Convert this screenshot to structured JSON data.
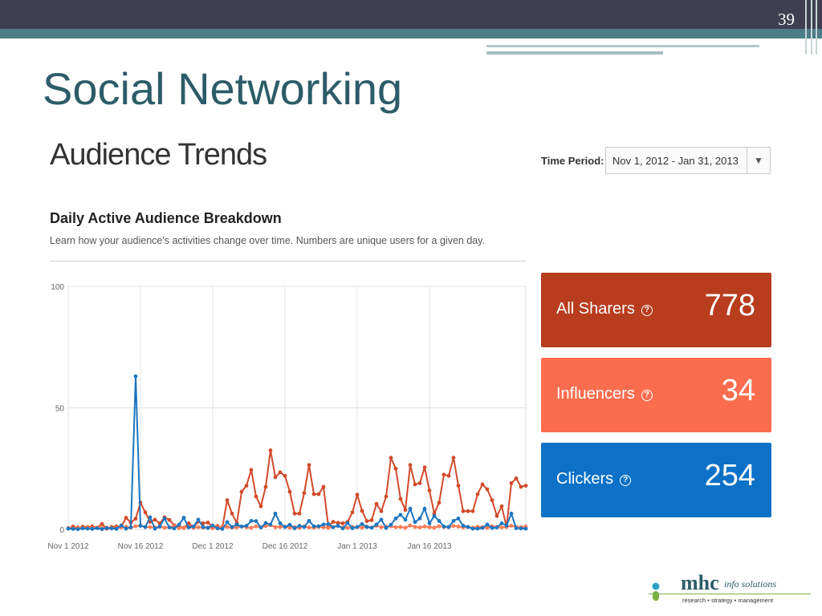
{
  "slide": {
    "page_number": "39",
    "title": "Social Networking"
  },
  "panel": {
    "title": "Audience Trends",
    "time_period_label": "Time Period:",
    "time_period_value": "Nov 1, 2012 - Jan 31, 2013",
    "section_title": "Daily Active Audience Breakdown",
    "section_description": "Learn how your audience's activities change over time. Numbers are unique users for a given day."
  },
  "stats": [
    {
      "label": "All Sharers",
      "value": "778",
      "color": "#b83c1e"
    },
    {
      "label": "Influencers",
      "value": "34",
      "color": "#fc6d4f"
    },
    {
      "label": "Clickers",
      "value": "254",
      "color": "#0d71c7"
    }
  ],
  "icons": {
    "help": "question-circle-icon",
    "dropdown": "triangle-down-icon"
  },
  "colors": {
    "topbar": "#3f3f51",
    "teal": "#4d7d86",
    "title": "#2c5c68",
    "sharers": "#d24a2a",
    "influencers": "#ff7a55",
    "clickers": "#1c76c0"
  },
  "chart_data": {
    "type": "line",
    "title": "",
    "xlabel": "",
    "ylabel": "",
    "ylim": [
      0,
      100
    ],
    "yticks": [
      0,
      50,
      100
    ],
    "xticks": [
      "Nov 1 2012",
      "Nov 16 2012",
      "Dec 1 2012",
      "Dec 16 2012",
      "Jan 1 2013",
      "Jan 16 2013"
    ],
    "x_start": "Nov 1 2012",
    "x_end": "Jan 31 2013",
    "grid": true,
    "series": [
      {
        "name": "All Sharers",
        "color": "#d24a2a",
        "values": [
          0.3,
          1.2,
          0.5,
          1.1,
          1.0,
          1.2,
          0.7,
          2.2,
          0.3,
          1.0,
          1.2,
          1.0,
          4.8,
          2.8,
          4.4,
          11,
          7,
          3.1,
          4.0,
          2.4,
          5.0,
          3.9,
          1.7,
          1.1,
          0.6,
          2.5,
          0.8,
          3.2,
          2.5,
          2.8,
          1.0,
          1.4,
          0.7,
          12,
          6.5,
          2.6,
          15.5,
          18.0,
          24.5,
          13.5,
          9.5,
          17.5,
          32.5,
          21.5,
          23.5,
          22.0,
          15.5,
          6.5,
          6.5,
          15.0,
          26.5,
          14.5,
          14.5,
          17.5,
          1.4,
          3.1,
          2.7,
          2.5,
          3.1,
          7.0,
          14.3,
          7.6,
          3.4,
          3.8,
          10.5,
          7.5,
          13.5,
          29.5,
          25.0,
          12.5,
          8.0,
          26.5,
          18.5,
          19.0,
          25.5,
          16.0,
          6.5,
          11.0,
          22.5,
          22.0,
          29.5,
          18.0,
          7.5,
          7.5,
          7.5,
          14.5,
          18.5,
          16.5,
          12.0,
          5.5,
          9.5,
          1.0,
          19.0,
          21.0,
          17.5,
          18.0
        ]
      },
      {
        "name": "Influencers",
        "color": "#ff7a55",
        "values": [
          0.6,
          0.4,
          0.9,
          0.5,
          0.8,
          0.5,
          0.8,
          0.5,
          0.7,
          0.6,
          0.5,
          0.8,
          1.1,
          0.7,
          1.3,
          1.6,
          0.9,
          1.0,
          0.8,
          1.1,
          0.7,
          0.9,
          1.4,
          0.5,
          0.8,
          1.0,
          0.6,
          0.9,
          0.7,
          0.8,
          0.5,
          0.9,
          1.1,
          1.0,
          0.7,
          0.8,
          1.2,
          0.9,
          0.6,
          1.3,
          0.8,
          1.4,
          1.7,
          0.9,
          1.0,
          1.1,
          0.7,
          0.9,
          0.6,
          1.2,
          0.8,
          0.7,
          1.0,
          0.9,
          0.6,
          1.0,
          1.4,
          0.8,
          0.6,
          1.0,
          0.9,
          0.7,
          1.2,
          0.8,
          1.5,
          0.9,
          1.1,
          1.3,
          0.9,
          1.0,
          0.7,
          1.6,
          1.0,
          0.8,
          1.2,
          0.9,
          0.7,
          1.3,
          1.0,
          0.9,
          1.4,
          1.2,
          0.8,
          1.0,
          0.7,
          1.1,
          0.9,
          0.6,
          1.3,
          1.0,
          0.8,
          1.1,
          1.5,
          1.0,
          0.9,
          1.2
        ]
      },
      {
        "name": "Clickers",
        "color": "#1c76c0",
        "values": [
          0.3,
          0.2,
          0.1,
          0.4,
          0.3,
          0.2,
          0.5,
          0.1,
          0.6,
          0.4,
          0.2,
          1.6,
          0.3,
          0.9,
          63,
          1.5,
          1.0,
          5.0,
          0.3,
          1.2,
          4.5,
          0.8,
          0.4,
          1.9,
          4.8,
          0.8,
          1.2,
          4.0,
          1.0,
          0.6,
          1.6,
          0.4,
          0.2,
          3.0,
          1.0,
          2.0,
          1.2,
          1.5,
          3.5,
          3.4,
          0.8,
          2.6,
          2.0,
          6.5,
          2.5,
          1.0,
          1.9,
          0.5,
          1.5,
          1.0,
          3.5,
          1.3,
          1.3,
          2.0,
          2.2,
          0.9,
          1.5,
          0.4,
          2.6,
          0.5,
          1.0,
          2.2,
          1.0,
          0.7,
          2.0,
          4.0,
          0.6,
          1.9,
          4.5,
          6.0,
          4.0,
          8.5,
          3.0,
          4.5,
          8.5,
          2.5,
          5.5,
          3.5,
          1.2,
          1.0,
          3.5,
          4.5,
          1.5,
          1.0,
          0.3,
          0.3,
          0.6,
          2.0,
          0.6,
          0.8,
          2.5,
          1.6,
          6.5,
          0.5,
          0.4,
          0.3
        ]
      }
    ]
  }
}
